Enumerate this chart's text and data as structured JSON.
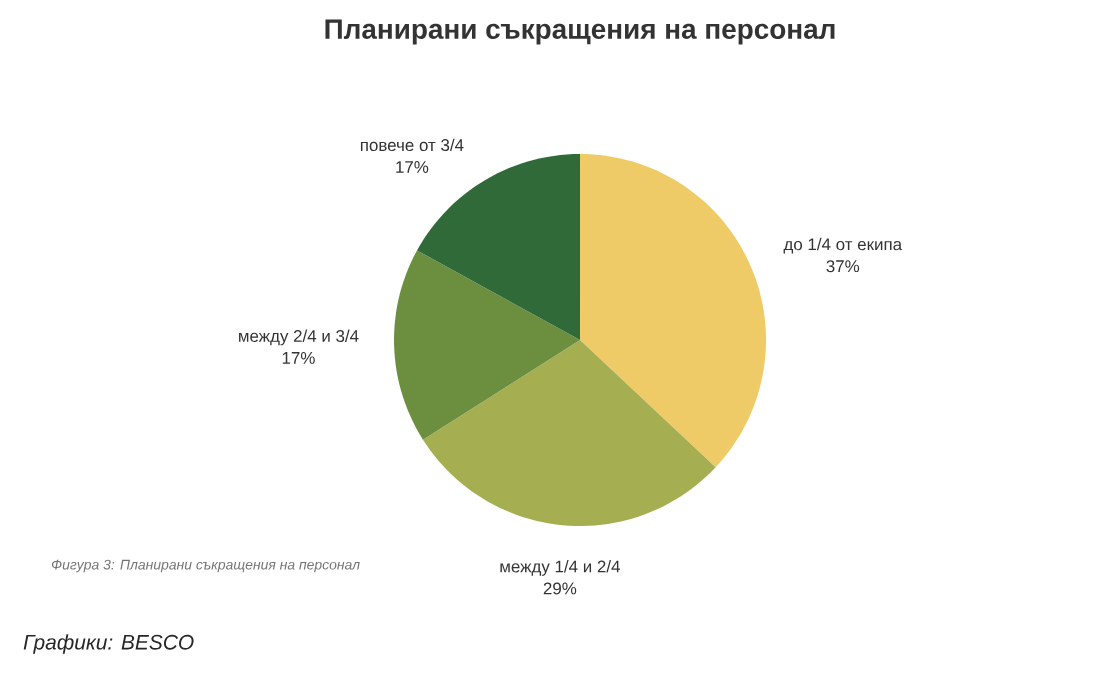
{
  "chart_data": {
    "type": "pie",
    "title": "Планирани съкращения на персонал",
    "categories": [
      "до 1/4 от екипа",
      "между 1/4 и 2/4",
      "между 2/4 и 3/4",
      "повече от 3/4"
    ],
    "values": [
      37,
      29,
      17,
      17
    ],
    "value_labels": [
      "37%",
      "29%",
      "17%",
      "17%"
    ],
    "colors": [
      "#efcb68",
      "#a5ae50",
      "#6b8f3f",
      "#306a38"
    ],
    "annotations": [
      "Фигура 3: Планирани съкращения на персонал",
      "Графики: BESCO"
    ]
  }
}
